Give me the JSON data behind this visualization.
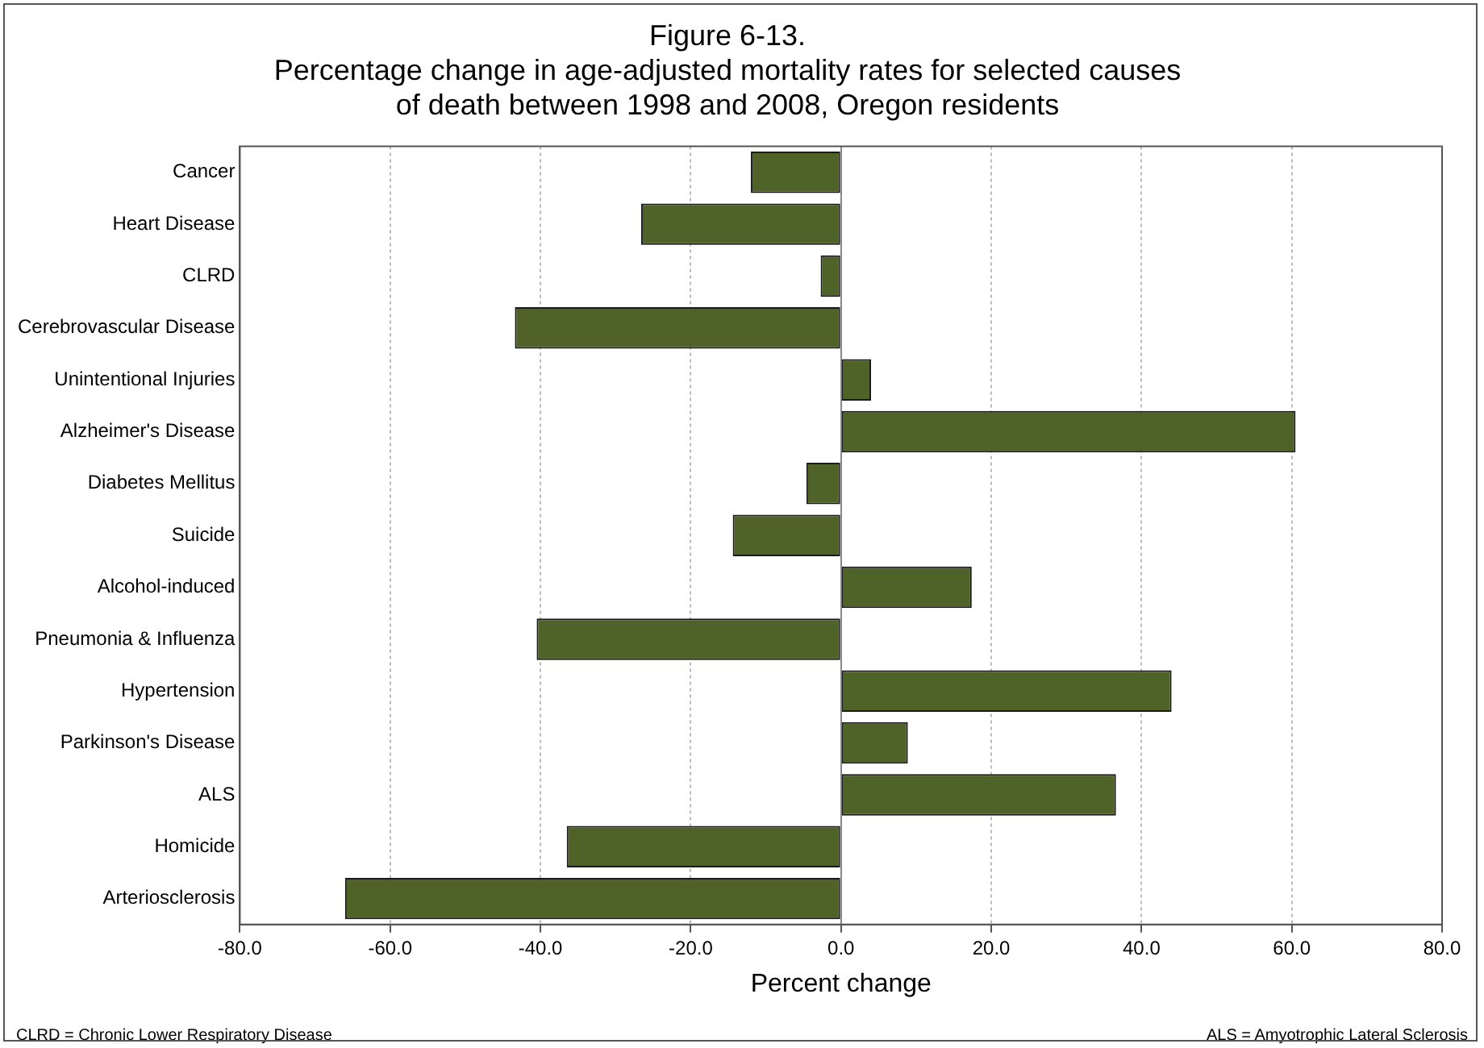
{
  "chart_data": {
    "type": "bar",
    "orientation": "horizontal",
    "title": "Figure 6-13.\nPercentage change in age-adjusted mortality rates for selected causes\nof death between 1998 and 2008, Oregon residents",
    "xlabel": "Percent change",
    "categories": [
      "Cancer",
      "Heart Disease",
      "CLRD",
      "Cerebrovascular Disease",
      "Unintentional Injuries",
      "Alzheimer's Disease",
      "Diabetes Mellitus",
      "Suicide",
      "Alcohol-induced",
      "Pneumonia & Influenza",
      "Hypertension",
      "Parkinson's Disease",
      "ALS",
      "Homicide",
      "Arteriosclerosis"
    ],
    "values": [
      -12.0,
      -26.6,
      -2.7,
      -43.4,
      4.0,
      60.5,
      -4.6,
      -14.4,
      17.4,
      -40.5,
      44.0,
      8.9,
      36.6,
      -36.5,
      -66.0
    ],
    "color": "#4f6228",
    "xlim": [
      -80,
      80
    ],
    "xticks": [
      {
        "value": -80,
        "label": "-80.0"
      },
      {
        "value": -60,
        "label": "-60.0"
      },
      {
        "value": -40,
        "label": "-40.0"
      },
      {
        "value": -20,
        "label": "-20.0"
      },
      {
        "value": 0,
        "label": "0.0"
      },
      {
        "value": 20,
        "label": "20.0"
      },
      {
        "value": 40,
        "label": "40.0"
      },
      {
        "value": 60,
        "label": "60.0"
      },
      {
        "value": 80,
        "label": "80.0"
      }
    ],
    "grid": "x",
    "legend": false,
    "annotations": [
      "CLRD = Chronic Lower Respiratory Disease",
      "ALS = Amyotrophic Lateral Sclerosis"
    ]
  }
}
